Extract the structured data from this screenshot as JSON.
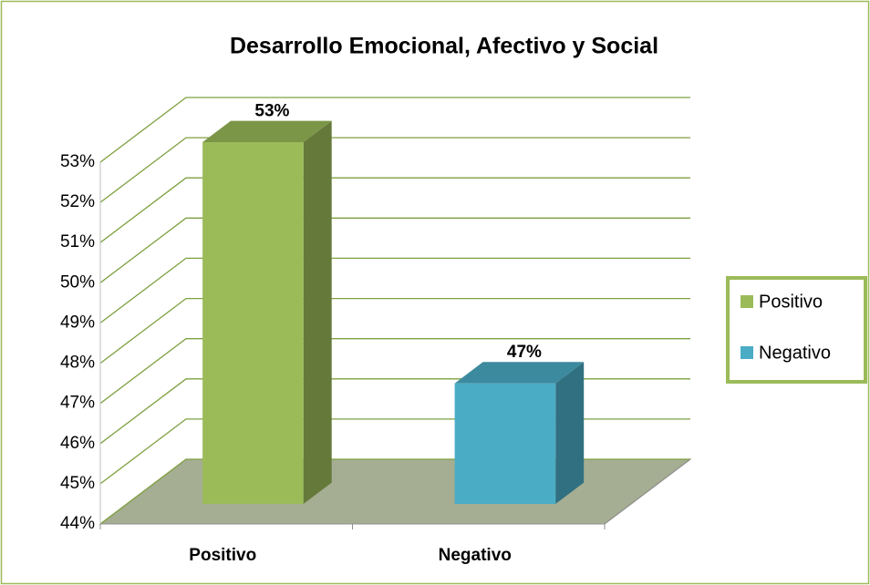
{
  "chart_data": {
    "type": "bar3d",
    "title": "Desarrollo Emocional, Afectivo y Social",
    "categories": [
      "Positivo",
      "Negativo"
    ],
    "values": [
      53,
      47
    ],
    "value_labels": [
      "53%",
      "47%"
    ],
    "colors": [
      "#9bbb59",
      "#4bacc6"
    ],
    "ylim": [
      44,
      53
    ],
    "yticks": [
      {
        "value": 44,
        "label": "44%"
      },
      {
        "value": 45,
        "label": "45%"
      },
      {
        "value": 46,
        "label": "46%"
      },
      {
        "value": 47,
        "label": "47%"
      },
      {
        "value": 48,
        "label": "48%"
      },
      {
        "value": 49,
        "label": "49%"
      },
      {
        "value": 50,
        "label": "50%"
      },
      {
        "value": 51,
        "label": "51%"
      },
      {
        "value": 52,
        "label": "52%"
      },
      {
        "value": 53,
        "label": "53%"
      }
    ],
    "grid": true,
    "legend": "right"
  }
}
